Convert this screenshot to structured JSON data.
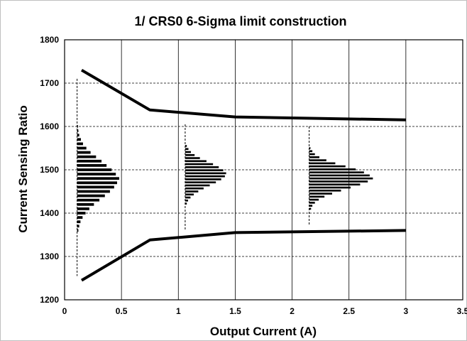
{
  "chart_data": {
    "type": "line",
    "title": "1/ CRS0 6-Sigma limit construction",
    "xlabel": "Output Current (A)",
    "ylabel": "Current Sensing Ratio",
    "xlim": [
      0,
      3.5
    ],
    "ylim": [
      1200,
      1800
    ],
    "xticks": [
      0,
      0.5,
      1,
      1.5,
      2,
      2.5,
      3,
      3.5
    ],
    "xtick_labels": [
      "0",
      "0.5",
      "1",
      "1.5",
      "2",
      "2.5",
      "3",
      "3.5"
    ],
    "yticks": [
      1200,
      1300,
      1400,
      1500,
      1600,
      1700,
      1800
    ],
    "ytick_labels": [
      "1200",
      "1300",
      "1400",
      "1500",
      "1600",
      "1700",
      "1800"
    ],
    "grid": {
      "horizontal": "dashed",
      "vertical": "solid"
    },
    "series": [
      {
        "x": [
          0.15,
          0.75,
          1.5,
          3.0
        ],
        "y": [
          1730,
          1638,
          1622,
          1615
        ]
      },
      {
        "x": [
          0.15,
          0.75,
          1.5,
          3.0
        ],
        "y": [
          1245,
          1338,
          1355,
          1360
        ]
      }
    ],
    "histograms": [
      {
        "x_base": 0.11,
        "width_unit_x": 0.37,
        "range": [
          1255,
          1710
        ],
        "bins": [
          {
            "y": 1600,
            "count": 0.02
          },
          {
            "y": 1590,
            "count": 0.03
          },
          {
            "y": 1580,
            "count": 0.05
          },
          {
            "y": 1570,
            "count": 0.09
          },
          {
            "y": 1560,
            "count": 0.14
          },
          {
            "y": 1550,
            "count": 0.22
          },
          {
            "y": 1540,
            "count": 0.32
          },
          {
            "y": 1530,
            "count": 0.45
          },
          {
            "y": 1520,
            "count": 0.58
          },
          {
            "y": 1510,
            "count": 0.7
          },
          {
            "y": 1500,
            "count": 0.82
          },
          {
            "y": 1490,
            "count": 0.92
          },
          {
            "y": 1480,
            "count": 1.0
          },
          {
            "y": 1470,
            "count": 0.95
          },
          {
            "y": 1460,
            "count": 0.88
          },
          {
            "y": 1450,
            "count": 0.78
          },
          {
            "y": 1440,
            "count": 0.66
          },
          {
            "y": 1430,
            "count": 0.53
          },
          {
            "y": 1420,
            "count": 0.4
          },
          {
            "y": 1410,
            "count": 0.29
          },
          {
            "y": 1400,
            "count": 0.2
          },
          {
            "y": 1390,
            "count": 0.13
          },
          {
            "y": 1380,
            "count": 0.08
          },
          {
            "y": 1370,
            "count": 0.05
          },
          {
            "y": 1360,
            "count": 0.03
          }
        ]
      },
      {
        "x_base": 1.06,
        "width_unit_x": 0.36,
        "range": [
          1360,
          1605
        ],
        "bins": [
          {
            "y": 1555,
            "count": 0.04
          },
          {
            "y": 1548,
            "count": 0.08
          },
          {
            "y": 1541,
            "count": 0.14
          },
          {
            "y": 1534,
            "count": 0.23
          },
          {
            "y": 1527,
            "count": 0.36
          },
          {
            "y": 1520,
            "count": 0.52
          },
          {
            "y": 1513,
            "count": 0.68
          },
          {
            "y": 1506,
            "count": 0.82
          },
          {
            "y": 1499,
            "count": 0.93
          },
          {
            "y": 1492,
            "count": 1.0
          },
          {
            "y": 1485,
            "count": 0.97
          },
          {
            "y": 1478,
            "count": 0.88
          },
          {
            "y": 1471,
            "count": 0.75
          },
          {
            "y": 1464,
            "count": 0.6
          },
          {
            "y": 1457,
            "count": 0.45
          },
          {
            "y": 1450,
            "count": 0.32
          },
          {
            "y": 1443,
            "count": 0.21
          },
          {
            "y": 1436,
            "count": 0.13
          },
          {
            "y": 1429,
            "count": 0.07
          },
          {
            "y": 1422,
            "count": 0.04
          }
        ]
      },
      {
        "x_base": 2.15,
        "width_unit_x": 0.56,
        "range": [
          1372,
          1600
        ],
        "bins": [
          {
            "y": 1550,
            "count": 0.02
          },
          {
            "y": 1543,
            "count": 0.05
          },
          {
            "y": 1536,
            "count": 0.09
          },
          {
            "y": 1529,
            "count": 0.16
          },
          {
            "y": 1522,
            "count": 0.27
          },
          {
            "y": 1515,
            "count": 0.41
          },
          {
            "y": 1508,
            "count": 0.57
          },
          {
            "y": 1501,
            "count": 0.73
          },
          {
            "y": 1494,
            "count": 0.86
          },
          {
            "y": 1487,
            "count": 0.95
          },
          {
            "y": 1480,
            "count": 1.0
          },
          {
            "y": 1473,
            "count": 0.92
          },
          {
            "y": 1466,
            "count": 0.8
          },
          {
            "y": 1459,
            "count": 0.65
          },
          {
            "y": 1452,
            "count": 0.5
          },
          {
            "y": 1445,
            "count": 0.36
          },
          {
            "y": 1438,
            "count": 0.24
          },
          {
            "y": 1431,
            "count": 0.15
          },
          {
            "y": 1424,
            "count": 0.09
          },
          {
            "y": 1417,
            "count": 0.05
          },
          {
            "y": 1410,
            "count": 0.03
          }
        ]
      }
    ]
  }
}
